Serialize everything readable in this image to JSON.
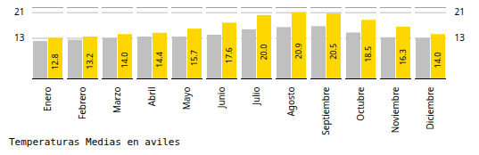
{
  "chart_data": {
    "type": "bar",
    "title": "Temperaturas Medias en aviles",
    "categories": [
      "Enero",
      "Febrero",
      "Marzo",
      "Abril",
      "Mayo",
      "Junio",
      "Julio",
      "Agosto",
      "Septiembre",
      "Octubre",
      "Noviembre",
      "Diciembre"
    ],
    "series": [
      {
        "color": "#C0C0C0",
        "values": [
          11.8,
          12.2,
          12.8,
          13.2,
          13.2,
          13.8,
          15.5,
          16.2,
          16.5,
          14.5,
          13.0,
          12.8
        ]
      },
      {
        "color": "#FFD700",
        "values": [
          12.8,
          13.2,
          14.0,
          14.4,
          15.7,
          17.6,
          20.0,
          20.9,
          20.5,
          18.5,
          16.3,
          14.0
        ],
        "data_labels": true,
        "value_labels": [
          "12.8",
          "13.2",
          "14.0",
          "14.4",
          "15.7",
          "17.6",
          "20.0",
          "20.9",
          "20.5",
          "18.5",
          "16.3",
          "14.0"
        ]
      }
    ],
    "ylim": [
      0,
      22.5
    ],
    "yticks": [
      12.8,
      20.9
    ],
    "grid": true
  }
}
